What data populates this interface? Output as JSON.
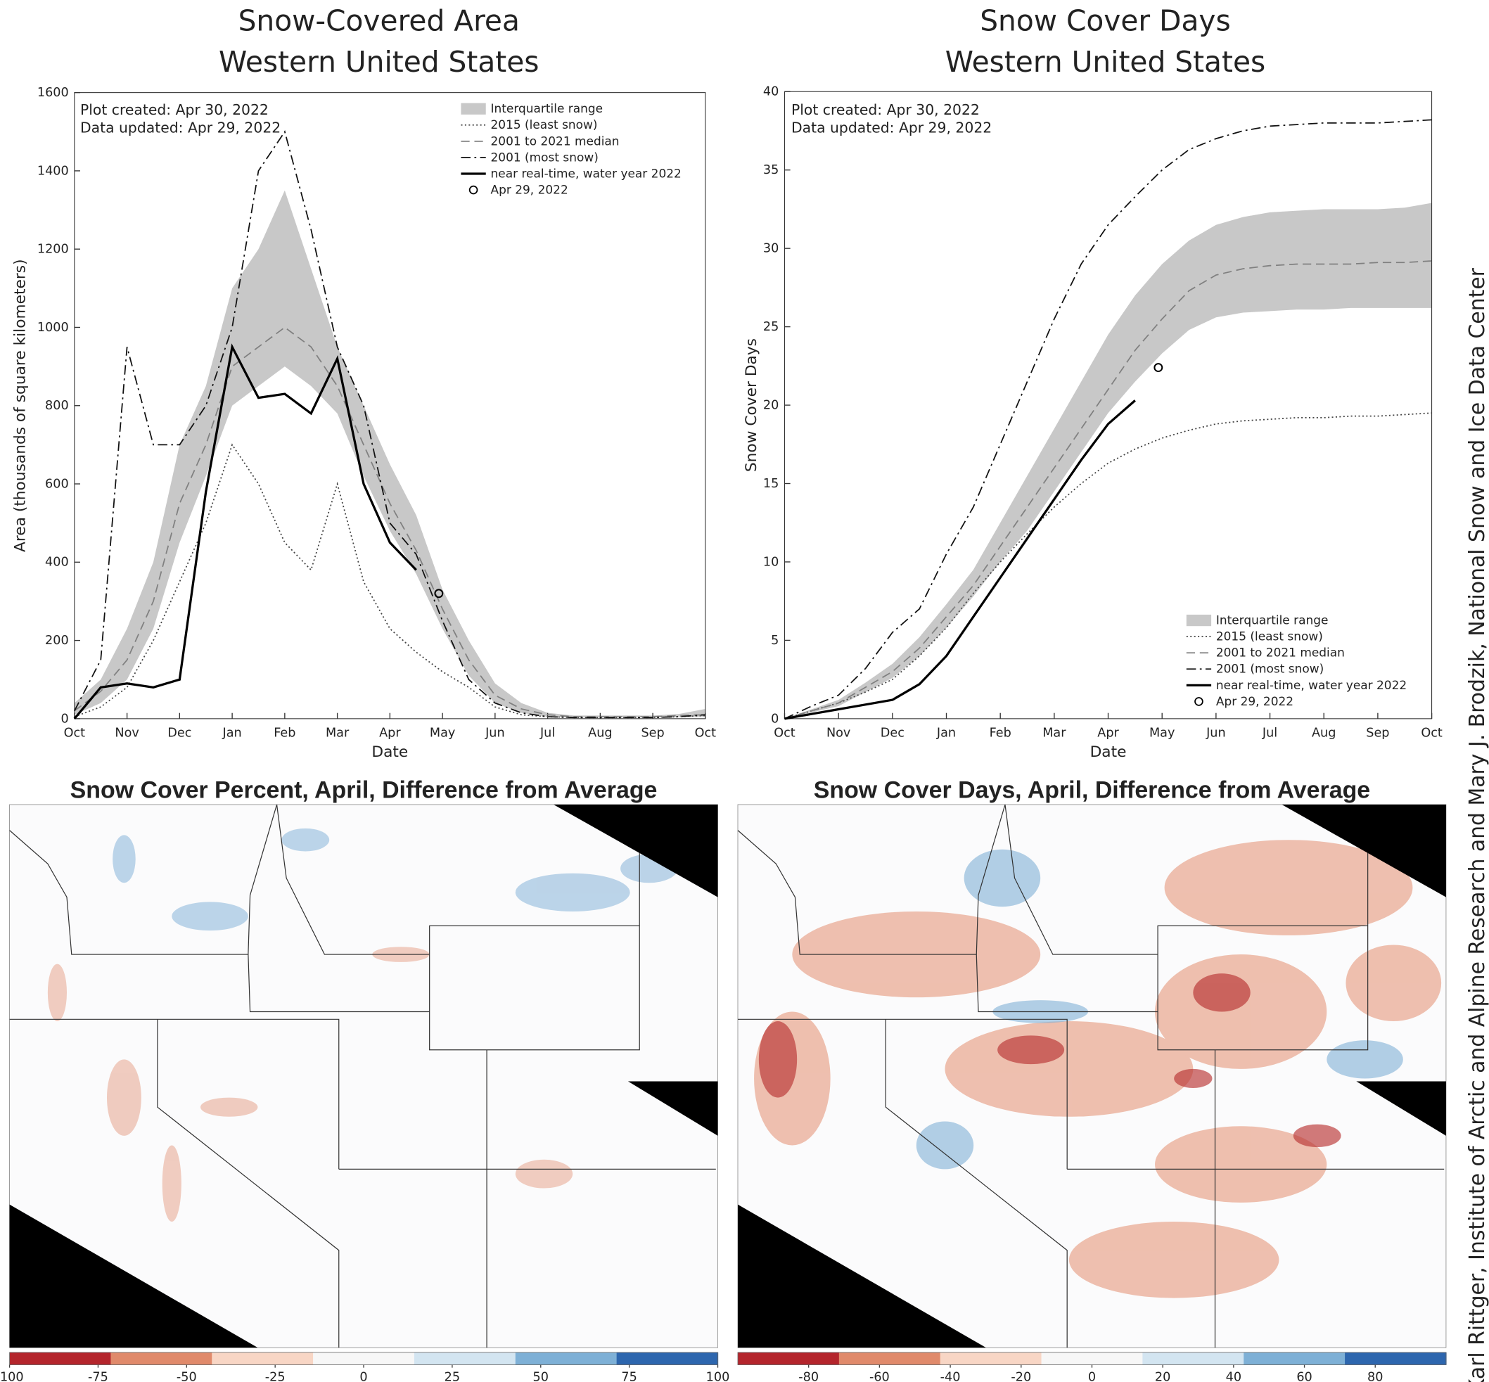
{
  "credit": "Karl Rittger, Institute of Arctic and Alpine Research and Mary J. Brodzik, National Snow and Ice Data Center",
  "chart_data": [
    {
      "type": "line",
      "title": "Snow-Covered Area",
      "subtitle": "Western United States",
      "x_label": "Date",
      "y_label": "Area (thousands of square kilometers)",
      "annotations": [
        "Plot created: Apr 30, 2022",
        "Data updated: Apr 29, 2022"
      ],
      "x": [
        0,
        0.5,
        1,
        1.5,
        2,
        2.5,
        3,
        3.5,
        4,
        4.5,
        5,
        5.5,
        6,
        6.5,
        7,
        7.5,
        8,
        8.5,
        9,
        9.5,
        10,
        10.5,
        11,
        11.5,
        12
      ],
      "xlim": [
        0,
        12
      ],
      "xticks": [
        {
          "value": 0,
          "label": "Oct"
        },
        {
          "value": 1,
          "label": "Nov"
        },
        {
          "value": 2,
          "label": "Dec"
        },
        {
          "value": 3,
          "label": "Jan"
        },
        {
          "value": 4,
          "label": "Feb"
        },
        {
          "value": 5,
          "label": "Mar"
        },
        {
          "value": 6,
          "label": "Apr"
        },
        {
          "value": 7,
          "label": "May"
        },
        {
          "value": 8,
          "label": "Jun"
        },
        {
          "value": 9,
          "label": "Jul"
        },
        {
          "value": 10,
          "label": "Aug"
        },
        {
          "value": 11,
          "label": "Sep"
        },
        {
          "value": 12,
          "label": "Oct"
        }
      ],
      "ylim": [
        0,
        1600
      ],
      "yticks": [
        0,
        200,
        400,
        600,
        800,
        1000,
        1200,
        1400,
        1600
      ],
      "band": {
        "name": "Interquartile range",
        "color": "#c8c8c8",
        "lower": [
          10,
          40,
          100,
          230,
          450,
          620,
          800,
          850,
          900,
          850,
          780,
          620,
          480,
          370,
          230,
          110,
          40,
          15,
          5,
          3,
          3,
          3,
          3,
          5,
          5
        ],
        "upper": [
          40,
          100,
          230,
          400,
          700,
          850,
          1100,
          1200,
          1350,
          1150,
          950,
          800,
          650,
          520,
          330,
          200,
          90,
          40,
          15,
          8,
          8,
          8,
          8,
          12,
          25
        ]
      },
      "series": [
        {
          "name": "2015 (least snow)",
          "color": "#444444",
          "dash": "dotted",
          "values": [
            5,
            30,
            80,
            200,
            350,
            500,
            700,
            600,
            450,
            380,
            600,
            350,
            230,
            170,
            120,
            80,
            30,
            10,
            5,
            3,
            3,
            3,
            3,
            5,
            8
          ]
        },
        {
          "name": "2001 to 2021 median",
          "color": "#808080",
          "dash": "dashed",
          "values": [
            20,
            70,
            150,
            300,
            550,
            700,
            900,
            950,
            1000,
            950,
            850,
            700,
            550,
            430,
            280,
            150,
            60,
            25,
            10,
            5,
            5,
            5,
            5,
            8,
            10
          ]
        },
        {
          "name": "2001 (most snow)",
          "color": "#111111",
          "dash": "dashdot",
          "values": [
            20,
            150,
            950,
            700,
            700,
            800,
            1000,
            1400,
            1500,
            1250,
            950,
            800,
            500,
            420,
            250,
            100,
            40,
            15,
            5,
            3,
            3,
            3,
            3,
            5,
            10
          ]
        },
        {
          "name": "near real-time, water year 2022",
          "color": "#000000",
          "dash": "solid",
          "values": [
            0,
            80,
            90,
            80,
            100,
            580,
            950,
            820,
            830,
            780,
            920,
            600,
            450,
            380,
            null,
            null,
            null,
            null,
            null,
            null,
            null,
            null,
            null,
            null,
            null
          ]
        }
      ],
      "marker": {
        "x": 6.93,
        "y": 320,
        "label": "Apr 29, 2022"
      },
      "legend": "upper right"
    },
    {
      "type": "line",
      "title": "Snow Cover Days",
      "subtitle": "Western United States",
      "x_label": "Date",
      "y_label": "Snow Cover Days",
      "annotations": [
        "Plot created: Apr 30, 2022",
        "Data updated: Apr 29, 2022"
      ],
      "x": [
        0,
        0.5,
        1,
        1.5,
        2,
        2.5,
        3,
        3.5,
        4,
        4.5,
        5,
        5.5,
        6,
        6.5,
        7,
        7.5,
        8,
        8.5,
        9,
        9.5,
        10,
        10.5,
        11,
        11.5,
        12
      ],
      "xlim": [
        0,
        12
      ],
      "xticks": [
        {
          "value": 0,
          "label": "Oct"
        },
        {
          "value": 1,
          "label": "Nov"
        },
        {
          "value": 2,
          "label": "Dec"
        },
        {
          "value": 3,
          "label": "Jan"
        },
        {
          "value": 4,
          "label": "Feb"
        },
        {
          "value": 5,
          "label": "Mar"
        },
        {
          "value": 6,
          "label": "Apr"
        },
        {
          "value": 7,
          "label": "May"
        },
        {
          "value": 8,
          "label": "Jun"
        },
        {
          "value": 9,
          "label": "Jul"
        },
        {
          "value": 10,
          "label": "Aug"
        },
        {
          "value": 11,
          "label": "Sep"
        },
        {
          "value": 12,
          "label": "Oct"
        }
      ],
      "ylim": [
        0,
        40
      ],
      "yticks": [
        0,
        5,
        10,
        15,
        20,
        25,
        30,
        35,
        40
      ],
      "band": {
        "name": "Interquartile range",
        "color": "#c8c8c8",
        "lower": [
          0,
          0.4,
          0.8,
          1.7,
          2.6,
          4,
          5.8,
          7.8,
          10,
          12,
          14.5,
          17,
          19.5,
          21.5,
          23.3,
          24.8,
          25.6,
          25.9,
          26,
          26.1,
          26.1,
          26.2,
          26.2,
          26.2,
          26.2
        ],
        "upper": [
          0,
          0.6,
          1.2,
          2.3,
          3.5,
          5.2,
          7.3,
          9.5,
          12.5,
          15.5,
          18.5,
          21.5,
          24.5,
          27,
          29,
          30.5,
          31.5,
          32,
          32.3,
          32.4,
          32.5,
          32.5,
          32.5,
          32.6,
          32.9
        ]
      },
      "series": [
        {
          "name": "2015 (least snow)",
          "color": "#444444",
          "dash": "dotted",
          "values": [
            0,
            0.5,
            1,
            1.7,
            2.5,
            4,
            5.8,
            8,
            10,
            11.8,
            13.5,
            15,
            16.3,
            17.2,
            17.9,
            18.4,
            18.8,
            19,
            19.1,
            19.2,
            19.2,
            19.3,
            19.3,
            19.4,
            19.5
          ]
        },
        {
          "name": "2001 to 2021 median",
          "color": "#808080",
          "dash": "dashed",
          "values": [
            0,
            0.5,
            1,
            2,
            3,
            4.5,
            6.5,
            8.5,
            11,
            13.5,
            16,
            18.5,
            21,
            23.5,
            25.5,
            27.3,
            28.3,
            28.7,
            28.9,
            29,
            29,
            29,
            29.1,
            29.1,
            29.2
          ]
        },
        {
          "name": "2001 (most snow)",
          "color": "#111111",
          "dash": "dashdot",
          "values": [
            0,
            0.8,
            1.5,
            3.2,
            5.5,
            7,
            10.5,
            13.5,
            17.5,
            21.5,
            25.5,
            29,
            31.5,
            33.3,
            35,
            36.3,
            37,
            37.5,
            37.8,
            37.9,
            38,
            38,
            38,
            38.1,
            38.2
          ]
        },
        {
          "name": "near real-time, water year 2022",
          "color": "#000000",
          "dash": "solid",
          "values": [
            0,
            0.3,
            0.6,
            0.9,
            1.2,
            2.2,
            4,
            6.5,
            9,
            11.5,
            14,
            16.5,
            18.8,
            20.3,
            null,
            null,
            null,
            null,
            null,
            null,
            null,
            null,
            null,
            null,
            null
          ]
        }
      ],
      "marker": {
        "x": 6.93,
        "y": 22.4,
        "label": "Apr 29, 2022"
      },
      "legend": "lower right"
    },
    {
      "type": "map",
      "title": "Snow Cover Percent, April, Difference from Average",
      "colorbar": {
        "colors": [
          "#b4252c",
          "#e08a6b",
          "#f8d6c5",
          "#f7f7f7",
          "#d3e5f1",
          "#7eb0d6",
          "#2d66ae"
        ],
        "clim": [
          -100,
          100
        ],
        "ticks": [
          -100,
          -75,
          -50,
          -25,
          0,
          25,
          50,
          75,
          100
        ]
      }
    },
    {
      "type": "map",
      "title": "Snow Cover Days, April, Difference from Average",
      "colorbar": {
        "colors": [
          "#b4252c",
          "#e08a6b",
          "#f8d6c5",
          "#f7f7f7",
          "#d3e5f1",
          "#7eb0d6",
          "#2d66ae"
        ],
        "clim": [
          -100,
          100
        ],
        "ticks": [
          -80,
          -60,
          -40,
          -20,
          0,
          20,
          40,
          60,
          80
        ]
      }
    }
  ]
}
